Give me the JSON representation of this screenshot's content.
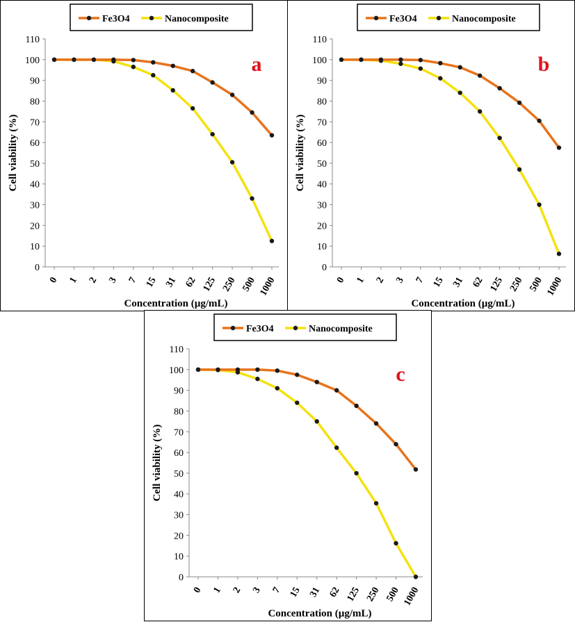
{
  "chart_data": [
    {
      "type": "line",
      "panel_label": "a",
      "categories": [
        "0",
        "1",
        "2",
        "3",
        "7",
        "15",
        "31",
        "62",
        "125",
        "250",
        "500",
        "1000"
      ],
      "series": [
        {
          "name": "Fe3O4",
          "color": "#e8731c",
          "values": [
            100,
            100,
            100,
            100,
            99.8,
            98.7,
            97,
            94.5,
            89,
            83,
            74.5,
            63.5
          ]
        },
        {
          "name": "Nanocomposite",
          "color": "#f5e10f",
          "values": [
            100,
            100,
            100,
            99.2,
            96.5,
            92.5,
            85.2,
            76.5,
            64,
            50.5,
            33,
            12.5
          ]
        }
      ],
      "xlabel": "Concentration (µg/mL)",
      "ylabel": "Cell viability (%)",
      "ylim": [
        0,
        110
      ],
      "yticks": [
        0,
        10,
        20,
        30,
        40,
        50,
        60,
        70,
        80,
        90,
        100,
        110
      ],
      "grid": false,
      "legend_position": "top"
    },
    {
      "type": "line",
      "panel_label": "b",
      "categories": [
        "0",
        "1",
        "2",
        "3",
        "7",
        "15",
        "31",
        "62",
        "125",
        "250",
        "500",
        "1000"
      ],
      "series": [
        {
          "name": "Fe3O4",
          "color": "#e8731c",
          "values": [
            100,
            100,
            100,
            100,
            99.8,
            98.3,
            96.3,
            92.3,
            86.2,
            79.2,
            70.5,
            57.5
          ]
        },
        {
          "name": "Nanocomposite",
          "color": "#f5e10f",
          "values": [
            100,
            100,
            99.5,
            98,
            95.7,
            91,
            84,
            75,
            62.2,
            47,
            30,
            6.3
          ]
        }
      ],
      "xlabel": "Concentration (µg/mL)",
      "ylabel": "Cell viability (%)",
      "ylim": [
        0,
        110
      ],
      "yticks": [
        0,
        10,
        20,
        30,
        40,
        50,
        60,
        70,
        80,
        90,
        100,
        110
      ],
      "grid": false,
      "legend_position": "top"
    },
    {
      "type": "line",
      "panel_label": "c",
      "categories": [
        "0",
        "1",
        "2",
        "3",
        "7",
        "15",
        "31",
        "62",
        "125",
        "250",
        "500",
        "1000"
      ],
      "series": [
        {
          "name": "Fe3O4",
          "color": "#e8731c",
          "values": [
            100,
            100,
            100,
            100,
            99.5,
            97.5,
            94,
            90,
            82.5,
            74,
            64,
            51.8
          ]
        },
        {
          "name": "Nanocomposite",
          "color": "#f5e10f",
          "values": [
            100,
            99.8,
            98.7,
            95.5,
            91,
            84,
            75,
            62.3,
            50,
            35.5,
            16.2,
            0
          ]
        }
      ],
      "xlabel": "Concentration (µg/mL)",
      "ylabel": "Cell viability (%)",
      "ylim": [
        0,
        110
      ],
      "yticks": [
        0,
        10,
        20,
        30,
        40,
        50,
        60,
        70,
        80,
        90,
        100,
        110
      ],
      "grid": false,
      "legend_position": "top"
    }
  ]
}
